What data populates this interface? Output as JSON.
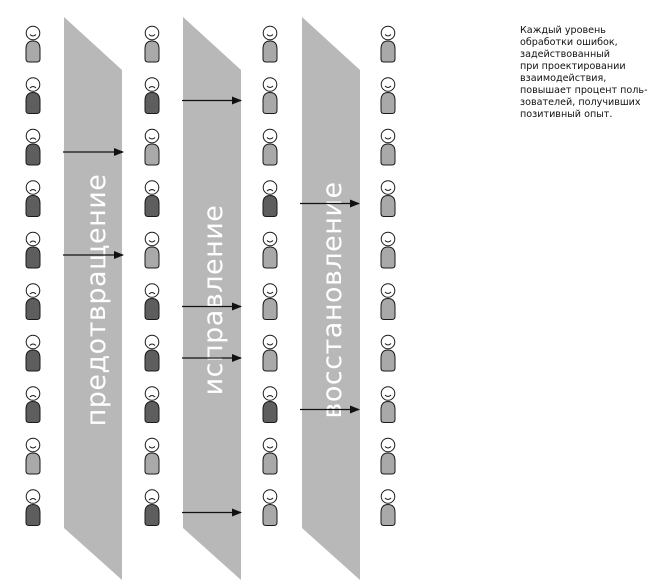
{
  "caption": {
    "lines": [
      "Каждый уровень",
      "обработки ошибок,",
      "задействованный",
      "при проектировании",
      "взаимодействия,",
      "повышает процент поль-",
      "зователей, получивших",
      "позитивный опыт."
    ]
  },
  "stages": [
    {
      "label": "предотвращение"
    },
    {
      "label": "исправление"
    },
    {
      "label": "восстановление"
    }
  ],
  "people": {
    "rows": 10,
    "columns": [
      {
        "states": [
          "satisfied",
          "unsatisfied",
          "unsatisfied",
          "unsatisfied",
          "unsatisfied",
          "unsatisfied",
          "unsatisfied",
          "unsatisfied",
          "satisfied",
          "unsatisfied"
        ]
      },
      {
        "states": [
          "satisfied",
          "unsatisfied",
          "satisfied",
          "unsatisfied",
          "satisfied",
          "unsatisfied",
          "unsatisfied",
          "unsatisfied",
          "satisfied",
          "unsatisfied"
        ]
      },
      {
        "states": [
          "satisfied",
          "satisfied",
          "satisfied",
          "unsatisfied",
          "satisfied",
          "satisfied",
          "satisfied",
          "unsatisfied",
          "satisfied",
          "satisfied"
        ]
      },
      {
        "states": [
          "satisfied",
          "satisfied",
          "satisfied",
          "satisfied",
          "satisfied",
          "satisfied",
          "satisfied",
          "satisfied",
          "satisfied",
          "satisfied"
        ]
      }
    ]
  },
  "transitions": [
    {
      "from_column": 0,
      "row": 2
    },
    {
      "from_column": 0,
      "row": 4
    },
    {
      "from_column": 1,
      "row": 1
    },
    {
      "from_column": 1,
      "row": 5
    },
    {
      "from_column": 1,
      "row": 6
    },
    {
      "from_column": 1,
      "row": 9
    },
    {
      "from_column": 2,
      "row": 3
    },
    {
      "from_column": 2,
      "row": 7
    }
  ],
  "colors": {
    "band": "#b8b8b8",
    "satisfied_body": "#a9a9a9",
    "unsatisfied_body": "#5e5e5e",
    "outline": "#1a1a1a",
    "arrow": "#111111",
    "label": "#ffffff"
  },
  "icons": {
    "person": "person-icon",
    "arrow": "arrow-right-icon"
  }
}
